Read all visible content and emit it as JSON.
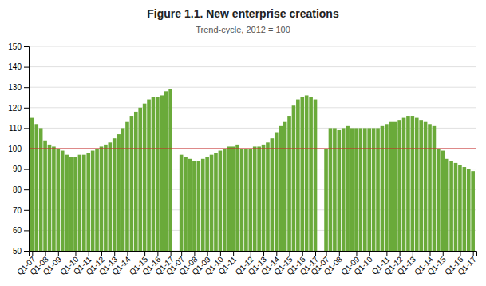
{
  "chart_data": {
    "type": "bar",
    "title": "Figure 1.1. New enterprise creations",
    "subtitle": "Trend-cycle, 2012 = 100",
    "categories": [
      "Q1-07",
      null,
      null,
      "Q1-08",
      null,
      null,
      "Q1-09",
      null,
      null,
      null,
      "Q1-10",
      null,
      null,
      "Q1-11",
      null,
      null,
      "Q1-12",
      null,
      null,
      "Q1-13",
      null,
      null,
      "Q1-14",
      null,
      null,
      null,
      "Q1-15",
      null,
      null,
      "Q1-16",
      null,
      null,
      "Q1-17",
      "Q1-07",
      null,
      null,
      "Q1-08",
      null,
      null,
      "Q1-09",
      null,
      null,
      "Q1-10",
      null,
      null,
      "Q1-11",
      null,
      null,
      null,
      "Q1-12",
      null,
      null,
      "Q1-13",
      null,
      null,
      "Q1-14",
      null,
      null,
      "Q1-15",
      null,
      null,
      "Q1-16",
      null,
      null,
      "Q1-17",
      "Q1-07",
      null,
      null,
      "Q1-08",
      null,
      null,
      null,
      "Q1-09",
      null,
      null,
      "Q1-10",
      null,
      null,
      null,
      "Q1-11",
      null,
      null,
      "Q1-12",
      null,
      null,
      "Q1-13",
      null,
      null,
      null,
      "Q1-14",
      null,
      null,
      "Q1-15",
      null,
      null,
      null,
      "Q1-16",
      null,
      null,
      "Q1-17"
    ],
    "values": [
      115,
      112,
      110,
      104,
      102,
      101,
      100,
      99,
      97,
      96,
      96,
      97,
      97,
      98,
      99,
      100,
      101,
      102,
      103,
      105,
      107,
      110,
      113,
      116,
      118,
      120,
      122,
      124,
      125,
      125,
      126,
      128,
      129,
      97,
      96,
      95,
      94,
      94,
      95,
      96,
      97,
      98,
      99,
      100,
      101,
      101,
      102,
      100,
      100,
      100,
      101,
      101,
      102,
      103,
      105,
      108,
      111,
      113,
      116,
      121,
      124,
      125,
      126,
      125,
      124,
      100,
      110,
      110,
      109,
      110,
      111,
      110,
      110,
      110,
      110,
      110,
      110,
      110,
      111,
      112,
      113,
      113,
      114,
      115,
      116,
      116,
      115,
      114,
      113,
      112,
      111,
      100,
      99,
      95,
      94,
      93,
      92,
      91,
      90,
      89
    ],
    "color": "#6aaa3a",
    "ylim": [
      50,
      150
    ],
    "yticks": [
      50,
      60,
      70,
      80,
      90,
      100,
      110,
      120,
      130,
      140,
      150
    ],
    "grid": true,
    "reference_line": {
      "value": 100,
      "color": "#cc2222"
    }
  }
}
